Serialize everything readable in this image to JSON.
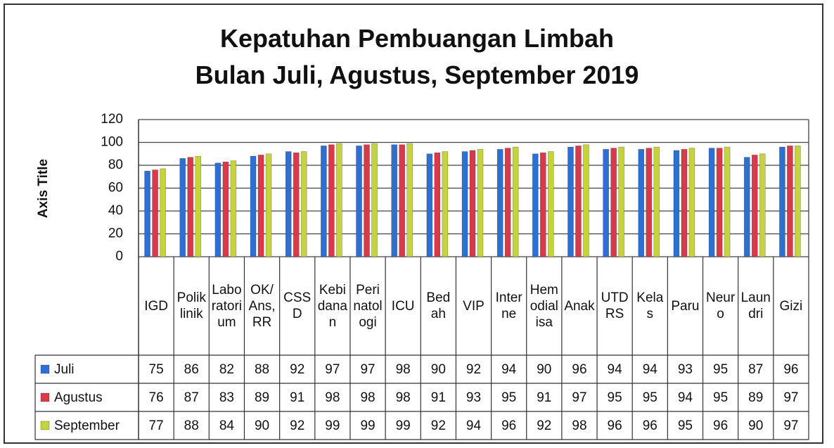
{
  "chart_data": {
    "type": "bar",
    "title": [
      "Kepatuhan Pembuangan Limbah",
      "Bulan Juli, Agustus, September 2019"
    ],
    "y_label": "Axis Title",
    "categories": [
      "IGD",
      "Poliklinik",
      "Laboratorium",
      "OK/Ans,RR",
      "CSSD",
      "Kebidanan",
      "Perinatologi",
      "ICU",
      "Bedah",
      "VIP",
      "Interne",
      "Hemodialisa",
      "Anak",
      "UTDRS",
      "Kelas",
      "Paru",
      "Neuro",
      "Laundri",
      "Gizi"
    ],
    "series": [
      {
        "name": "Juli",
        "color": "#2e6fd3",
        "values": [
          75,
          86,
          82,
          88,
          92,
          97,
          97,
          98,
          90,
          92,
          94,
          90,
          96,
          94,
          94,
          93,
          95,
          87,
          96
        ]
      },
      {
        "name": "Agustus",
        "color": "#d8394b",
        "values": [
          76,
          87,
          83,
          89,
          91,
          98,
          98,
          98,
          91,
          93,
          95,
          91,
          97,
          95,
          95,
          94,
          95,
          89,
          97
        ]
      },
      {
        "name": "September",
        "color": "#c5d33e",
        "values": [
          77,
          88,
          84,
          90,
          92,
          99,
          99,
          99,
          92,
          94,
          96,
          92,
          98,
          96,
          96,
          95,
          96,
          90,
          97
        ]
      }
    ],
    "ylim": [
      0,
      120
    ],
    "yticks": [
      0,
      20,
      40,
      60,
      80,
      100,
      120
    ],
    "grid": true,
    "legend": "table"
  }
}
